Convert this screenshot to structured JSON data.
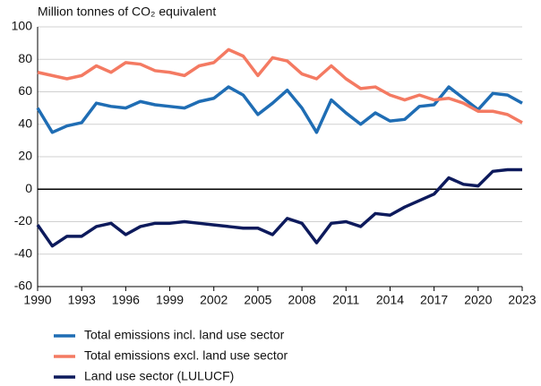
{
  "chart_data": {
    "type": "line",
    "y_axis_label": "Million tonnes of CO₂ equivalent",
    "x": [
      1990,
      1991,
      1992,
      1993,
      1994,
      1995,
      1996,
      1997,
      1998,
      1999,
      2000,
      2001,
      2002,
      2003,
      2004,
      2005,
      2006,
      2007,
      2008,
      2009,
      2010,
      2011,
      2012,
      2013,
      2014,
      2015,
      2016,
      2017,
      2018,
      2019,
      2020,
      2021,
      2022,
      2023
    ],
    "series": [
      {
        "name": "Total emissions incl. land use sector",
        "color": "#1f6db4",
        "values": [
          50,
          35,
          39,
          41,
          53,
          51,
          50,
          54,
          52,
          51,
          50,
          54,
          56,
          63,
          58,
          46,
          53,
          61,
          50,
          35,
          55,
          47,
          40,
          47,
          42,
          43,
          51,
          52,
          63,
          56,
          49,
          59,
          58,
          53
        ]
      },
      {
        "name": "Total emissions excl. land use sector",
        "color": "#f47a62",
        "values": [
          72,
          70,
          68,
          70,
          76,
          72,
          78,
          77,
          73,
          72,
          70,
          76,
          78,
          86,
          82,
          70,
          81,
          79,
          71,
          68,
          76,
          68,
          62,
          63,
          58,
          55,
          58,
          55,
          56,
          53,
          48,
          48,
          46,
          41
        ]
      },
      {
        "name": "Land use sector (LULUCF)",
        "color": "#0d1a5c",
        "values": [
          -22,
          -35,
          -29,
          -29,
          -23,
          -21,
          -28,
          -23,
          -21,
          -21,
          -20,
          -21,
          -22,
          -23,
          -24,
          -24,
          -28,
          -18,
          -21,
          -33,
          -21,
          -20,
          -23,
          -15,
          -16,
          -11,
          -7,
          -3,
          7,
          3,
          2,
          11,
          12,
          12
        ]
      }
    ],
    "xlim": [
      1990,
      2023
    ],
    "xticks": [
      1990,
      1993,
      1996,
      1999,
      2002,
      2005,
      2008,
      2011,
      2014,
      2017,
      2020,
      2023
    ],
    "ylim": [
      -60,
      100
    ],
    "yticks": [
      -60,
      -40,
      -20,
      0,
      20,
      40,
      60,
      80,
      100
    ],
    "grid": true
  }
}
